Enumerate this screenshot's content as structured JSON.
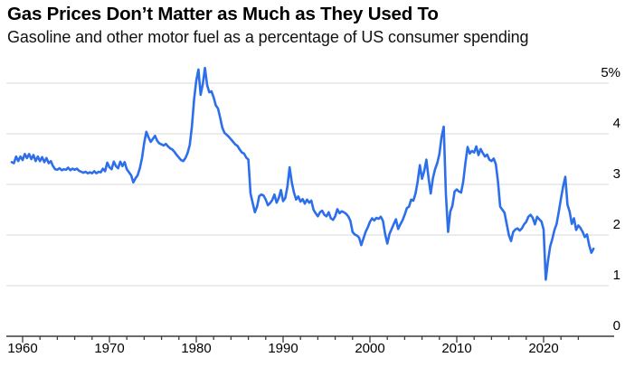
{
  "header": {
    "title": "Gas Prices Don’t Matter as Much as They Used To",
    "subtitle": "Gasoline and other motor fuel as a percentage of US consumer spending"
  },
  "chart_data": {
    "type": "line",
    "title": "Gas Prices Don’t Matter as Much as They Used To",
    "subtitle": "Gasoline and other motor fuel as a percentage of US consumer spending",
    "xlabel": "",
    "ylabel": "",
    "grid": "horizontal",
    "legend": "none",
    "xlim": [
      1958.1,
      2027.5
    ],
    "ylim": [
      0,
      5.4
    ],
    "line_color": "#2D6EEB",
    "gridline_color": "#d9d9d9",
    "axis_color": "#3c3c3c",
    "text_color": "#000000",
    "y_ticks": [
      {
        "value": 5,
        "label": "5%"
      },
      {
        "value": 4,
        "label": "4"
      },
      {
        "value": 3,
        "label": "3"
      },
      {
        "value": 2,
        "label": "2"
      },
      {
        "value": 1,
        "label": "1"
      },
      {
        "value": 0,
        "label": "0"
      }
    ],
    "x_ticks_labeled": [
      1960,
      1970,
      1980,
      1990,
      2000,
      2010,
      2020
    ],
    "x_minor_ticks": {
      "start": 1960,
      "end": 2024,
      "step": 2
    },
    "series": [
      {
        "name": "Gasoline and other motor fuel share of US consumer spending",
        "unit": "%",
        "points": [
          [
            1958.75,
            3.44
          ],
          [
            1959.0,
            3.42
          ],
          [
            1959.25,
            3.55
          ],
          [
            1959.5,
            3.46
          ],
          [
            1959.75,
            3.55
          ],
          [
            1960.0,
            3.48
          ],
          [
            1960.25,
            3.6
          ],
          [
            1960.5,
            3.52
          ],
          [
            1960.75,
            3.6
          ],
          [
            1961.0,
            3.5
          ],
          [
            1961.25,
            3.58
          ],
          [
            1961.5,
            3.46
          ],
          [
            1961.75,
            3.55
          ],
          [
            1962.0,
            3.46
          ],
          [
            1962.25,
            3.54
          ],
          [
            1962.5,
            3.44
          ],
          [
            1962.75,
            3.52
          ],
          [
            1963.0,
            3.42
          ],
          [
            1963.25,
            3.46
          ],
          [
            1963.5,
            3.36
          ],
          [
            1963.75,
            3.3
          ],
          [
            1964.0,
            3.29
          ],
          [
            1964.25,
            3.32
          ],
          [
            1964.5,
            3.28
          ],
          [
            1964.75,
            3.3
          ],
          [
            1965.0,
            3.29
          ],
          [
            1965.25,
            3.33
          ],
          [
            1965.5,
            3.28
          ],
          [
            1965.75,
            3.31
          ],
          [
            1966.0,
            3.29
          ],
          [
            1966.25,
            3.31
          ],
          [
            1966.5,
            3.27
          ],
          [
            1966.75,
            3.25
          ],
          [
            1967.0,
            3.23
          ],
          [
            1967.25,
            3.25
          ],
          [
            1967.5,
            3.22
          ],
          [
            1967.75,
            3.24
          ],
          [
            1968.0,
            3.22
          ],
          [
            1968.25,
            3.26
          ],
          [
            1968.5,
            3.22
          ],
          [
            1968.75,
            3.25
          ],
          [
            1969.0,
            3.24
          ],
          [
            1969.25,
            3.31
          ],
          [
            1969.5,
            3.26
          ],
          [
            1969.75,
            3.43
          ],
          [
            1970.0,
            3.34
          ],
          [
            1970.25,
            3.3
          ],
          [
            1970.5,
            3.45
          ],
          [
            1970.75,
            3.36
          ],
          [
            1971.0,
            3.32
          ],
          [
            1971.25,
            3.45
          ],
          [
            1971.5,
            3.36
          ],
          [
            1971.75,
            3.44
          ],
          [
            1972.0,
            3.3
          ],
          [
            1972.25,
            3.24
          ],
          [
            1972.5,
            3.18
          ],
          [
            1972.75,
            3.04
          ],
          [
            1973.0,
            3.12
          ],
          [
            1973.25,
            3.18
          ],
          [
            1973.5,
            3.32
          ],
          [
            1973.75,
            3.52
          ],
          [
            1974.0,
            3.82
          ],
          [
            1974.25,
            4.04
          ],
          [
            1974.5,
            3.93
          ],
          [
            1974.75,
            3.84
          ],
          [
            1975.0,
            3.9
          ],
          [
            1975.25,
            3.96
          ],
          [
            1975.5,
            3.86
          ],
          [
            1975.75,
            3.81
          ],
          [
            1976.0,
            3.79
          ],
          [
            1976.25,
            3.77
          ],
          [
            1976.5,
            3.8
          ],
          [
            1976.75,
            3.75
          ],
          [
            1977.0,
            3.71
          ],
          [
            1977.25,
            3.69
          ],
          [
            1977.5,
            3.64
          ],
          [
            1977.75,
            3.58
          ],
          [
            1978.0,
            3.53
          ],
          [
            1978.25,
            3.48
          ],
          [
            1978.5,
            3.46
          ],
          [
            1978.75,
            3.52
          ],
          [
            1979.0,
            3.62
          ],
          [
            1979.25,
            3.78
          ],
          [
            1979.5,
            4.15
          ],
          [
            1979.75,
            4.68
          ],
          [
            1980.0,
            5.05
          ],
          [
            1980.25,
            5.27
          ],
          [
            1980.5,
            4.77
          ],
          [
            1980.75,
            4.98
          ],
          [
            1981.0,
            5.3
          ],
          [
            1981.25,
            4.96
          ],
          [
            1981.5,
            4.82
          ],
          [
            1981.75,
            4.84
          ],
          [
            1982.0,
            4.72
          ],
          [
            1982.25,
            4.56
          ],
          [
            1982.5,
            4.5
          ],
          [
            1982.75,
            4.32
          ],
          [
            1983.0,
            4.12
          ],
          [
            1983.25,
            4.02
          ],
          [
            1983.5,
            3.98
          ],
          [
            1983.75,
            3.94
          ],
          [
            1984.0,
            3.89
          ],
          [
            1984.25,
            3.84
          ],
          [
            1984.5,
            3.79
          ],
          [
            1984.75,
            3.76
          ],
          [
            1985.0,
            3.69
          ],
          [
            1985.25,
            3.63
          ],
          [
            1985.5,
            3.61
          ],
          [
            1985.75,
            3.53
          ],
          [
            1986.0,
            3.49
          ],
          [
            1986.25,
            2.82
          ],
          [
            1986.5,
            2.63
          ],
          [
            1986.75,
            2.45
          ],
          [
            1987.0,
            2.56
          ],
          [
            1987.25,
            2.77
          ],
          [
            1987.5,
            2.8
          ],
          [
            1987.75,
            2.78
          ],
          [
            1988.0,
            2.7
          ],
          [
            1988.25,
            2.59
          ],
          [
            1988.5,
            2.63
          ],
          [
            1988.75,
            2.69
          ],
          [
            1989.0,
            2.8
          ],
          [
            1989.25,
            2.64
          ],
          [
            1989.5,
            2.73
          ],
          [
            1989.75,
            2.89
          ],
          [
            1990.0,
            2.67
          ],
          [
            1990.25,
            2.73
          ],
          [
            1990.5,
            2.96
          ],
          [
            1990.75,
            3.34
          ],
          [
            1991.0,
            3.04
          ],
          [
            1991.25,
            2.84
          ],
          [
            1991.5,
            2.7
          ],
          [
            1991.75,
            2.76
          ],
          [
            1992.0,
            2.66
          ],
          [
            1992.25,
            2.71
          ],
          [
            1992.5,
            2.62
          ],
          [
            1992.75,
            2.7
          ],
          [
            1993.0,
            2.64
          ],
          [
            1993.25,
            2.68
          ],
          [
            1993.5,
            2.5
          ],
          [
            1993.75,
            2.43
          ],
          [
            1994.0,
            2.37
          ],
          [
            1994.25,
            2.45
          ],
          [
            1994.5,
            2.48
          ],
          [
            1994.75,
            2.4
          ],
          [
            1995.0,
            2.37
          ],
          [
            1995.25,
            2.45
          ],
          [
            1995.5,
            2.33
          ],
          [
            1995.75,
            2.3
          ],
          [
            1996.0,
            2.37
          ],
          [
            1996.25,
            2.51
          ],
          [
            1996.5,
            2.43
          ],
          [
            1996.75,
            2.47
          ],
          [
            1997.0,
            2.45
          ],
          [
            1997.25,
            2.42
          ],
          [
            1997.5,
            2.37
          ],
          [
            1997.75,
            2.28
          ],
          [
            1998.0,
            2.06
          ],
          [
            1998.25,
            2.01
          ],
          [
            1998.5,
            1.99
          ],
          [
            1998.75,
            1.95
          ],
          [
            1999.0,
            1.8
          ],
          [
            1999.25,
            1.93
          ],
          [
            1999.5,
            2.06
          ],
          [
            1999.75,
            2.15
          ],
          [
            2000.0,
            2.26
          ],
          [
            2000.25,
            2.33
          ],
          [
            2000.5,
            2.29
          ],
          [
            2000.75,
            2.34
          ],
          [
            2001.0,
            2.32
          ],
          [
            2001.25,
            2.36
          ],
          [
            2001.5,
            2.28
          ],
          [
            2001.75,
            2.02
          ],
          [
            2002.0,
            1.83
          ],
          [
            2002.25,
            2.02
          ],
          [
            2002.5,
            2.12
          ],
          [
            2002.75,
            2.22
          ],
          [
            2003.0,
            2.31
          ],
          [
            2003.25,
            2.12
          ],
          [
            2003.5,
            2.21
          ],
          [
            2003.75,
            2.29
          ],
          [
            2004.0,
            2.4
          ],
          [
            2004.25,
            2.53
          ],
          [
            2004.5,
            2.56
          ],
          [
            2004.75,
            2.7
          ],
          [
            2005.0,
            2.68
          ],
          [
            2005.25,
            2.82
          ],
          [
            2005.5,
            3.06
          ],
          [
            2005.75,
            3.38
          ],
          [
            2006.0,
            3.11
          ],
          [
            2006.25,
            3.26
          ],
          [
            2006.5,
            3.49
          ],
          [
            2006.75,
            3.13
          ],
          [
            2007.0,
            2.82
          ],
          [
            2007.25,
            3.12
          ],
          [
            2007.5,
            3.3
          ],
          [
            2007.75,
            3.42
          ],
          [
            2008.0,
            3.6
          ],
          [
            2008.25,
            3.94
          ],
          [
            2008.5,
            4.14
          ],
          [
            2008.75,
            2.8
          ],
          [
            2009.0,
            2.06
          ],
          [
            2009.25,
            2.46
          ],
          [
            2009.5,
            2.58
          ],
          [
            2009.75,
            2.86
          ],
          [
            2010.0,
            2.9
          ],
          [
            2010.25,
            2.86
          ],
          [
            2010.5,
            2.84
          ],
          [
            2010.75,
            3.06
          ],
          [
            2011.0,
            3.43
          ],
          [
            2011.25,
            3.74
          ],
          [
            2011.5,
            3.61
          ],
          [
            2011.75,
            3.66
          ],
          [
            2012.0,
            3.63
          ],
          [
            2012.25,
            3.75
          ],
          [
            2012.5,
            3.58
          ],
          [
            2012.75,
            3.7
          ],
          [
            2013.0,
            3.62
          ],
          [
            2013.25,
            3.55
          ],
          [
            2013.5,
            3.59
          ],
          [
            2013.75,
            3.49
          ],
          [
            2014.0,
            3.46
          ],
          [
            2014.25,
            3.51
          ],
          [
            2014.5,
            3.4
          ],
          [
            2014.75,
            3.05
          ],
          [
            2015.0,
            2.56
          ],
          [
            2015.25,
            2.5
          ],
          [
            2015.5,
            2.44
          ],
          [
            2015.75,
            2.22
          ],
          [
            2016.0,
            2.0
          ],
          [
            2016.25,
            1.88
          ],
          [
            2016.5,
            2.06
          ],
          [
            2016.75,
            2.11
          ],
          [
            2017.0,
            2.13
          ],
          [
            2017.25,
            2.09
          ],
          [
            2017.5,
            2.13
          ],
          [
            2017.75,
            2.21
          ],
          [
            2018.0,
            2.26
          ],
          [
            2018.25,
            2.36
          ],
          [
            2018.5,
            2.4
          ],
          [
            2018.75,
            2.34
          ],
          [
            2019.0,
            2.21
          ],
          [
            2019.25,
            2.36
          ],
          [
            2019.5,
            2.31
          ],
          [
            2019.75,
            2.27
          ],
          [
            2020.0,
            2.11
          ],
          [
            2020.25,
            1.12
          ],
          [
            2020.5,
            1.48
          ],
          [
            2020.75,
            1.77
          ],
          [
            2021.0,
            1.92
          ],
          [
            2021.25,
            2.1
          ],
          [
            2021.5,
            2.22
          ],
          [
            2021.75,
            2.46
          ],
          [
            2022.0,
            2.72
          ],
          [
            2022.25,
            2.96
          ],
          [
            2022.5,
            3.15
          ],
          [
            2022.75,
            2.6
          ],
          [
            2023.0,
            2.46
          ],
          [
            2023.25,
            2.22
          ],
          [
            2023.5,
            2.33
          ],
          [
            2023.75,
            2.1
          ],
          [
            2024.0,
            2.19
          ],
          [
            2024.25,
            2.14
          ],
          [
            2024.5,
            2.06
          ],
          [
            2024.75,
            1.96
          ],
          [
            2025.0,
            2.01
          ],
          [
            2025.25,
            1.8
          ],
          [
            2025.5,
            1.65
          ],
          [
            2025.75,
            1.73
          ]
        ]
      }
    ]
  }
}
